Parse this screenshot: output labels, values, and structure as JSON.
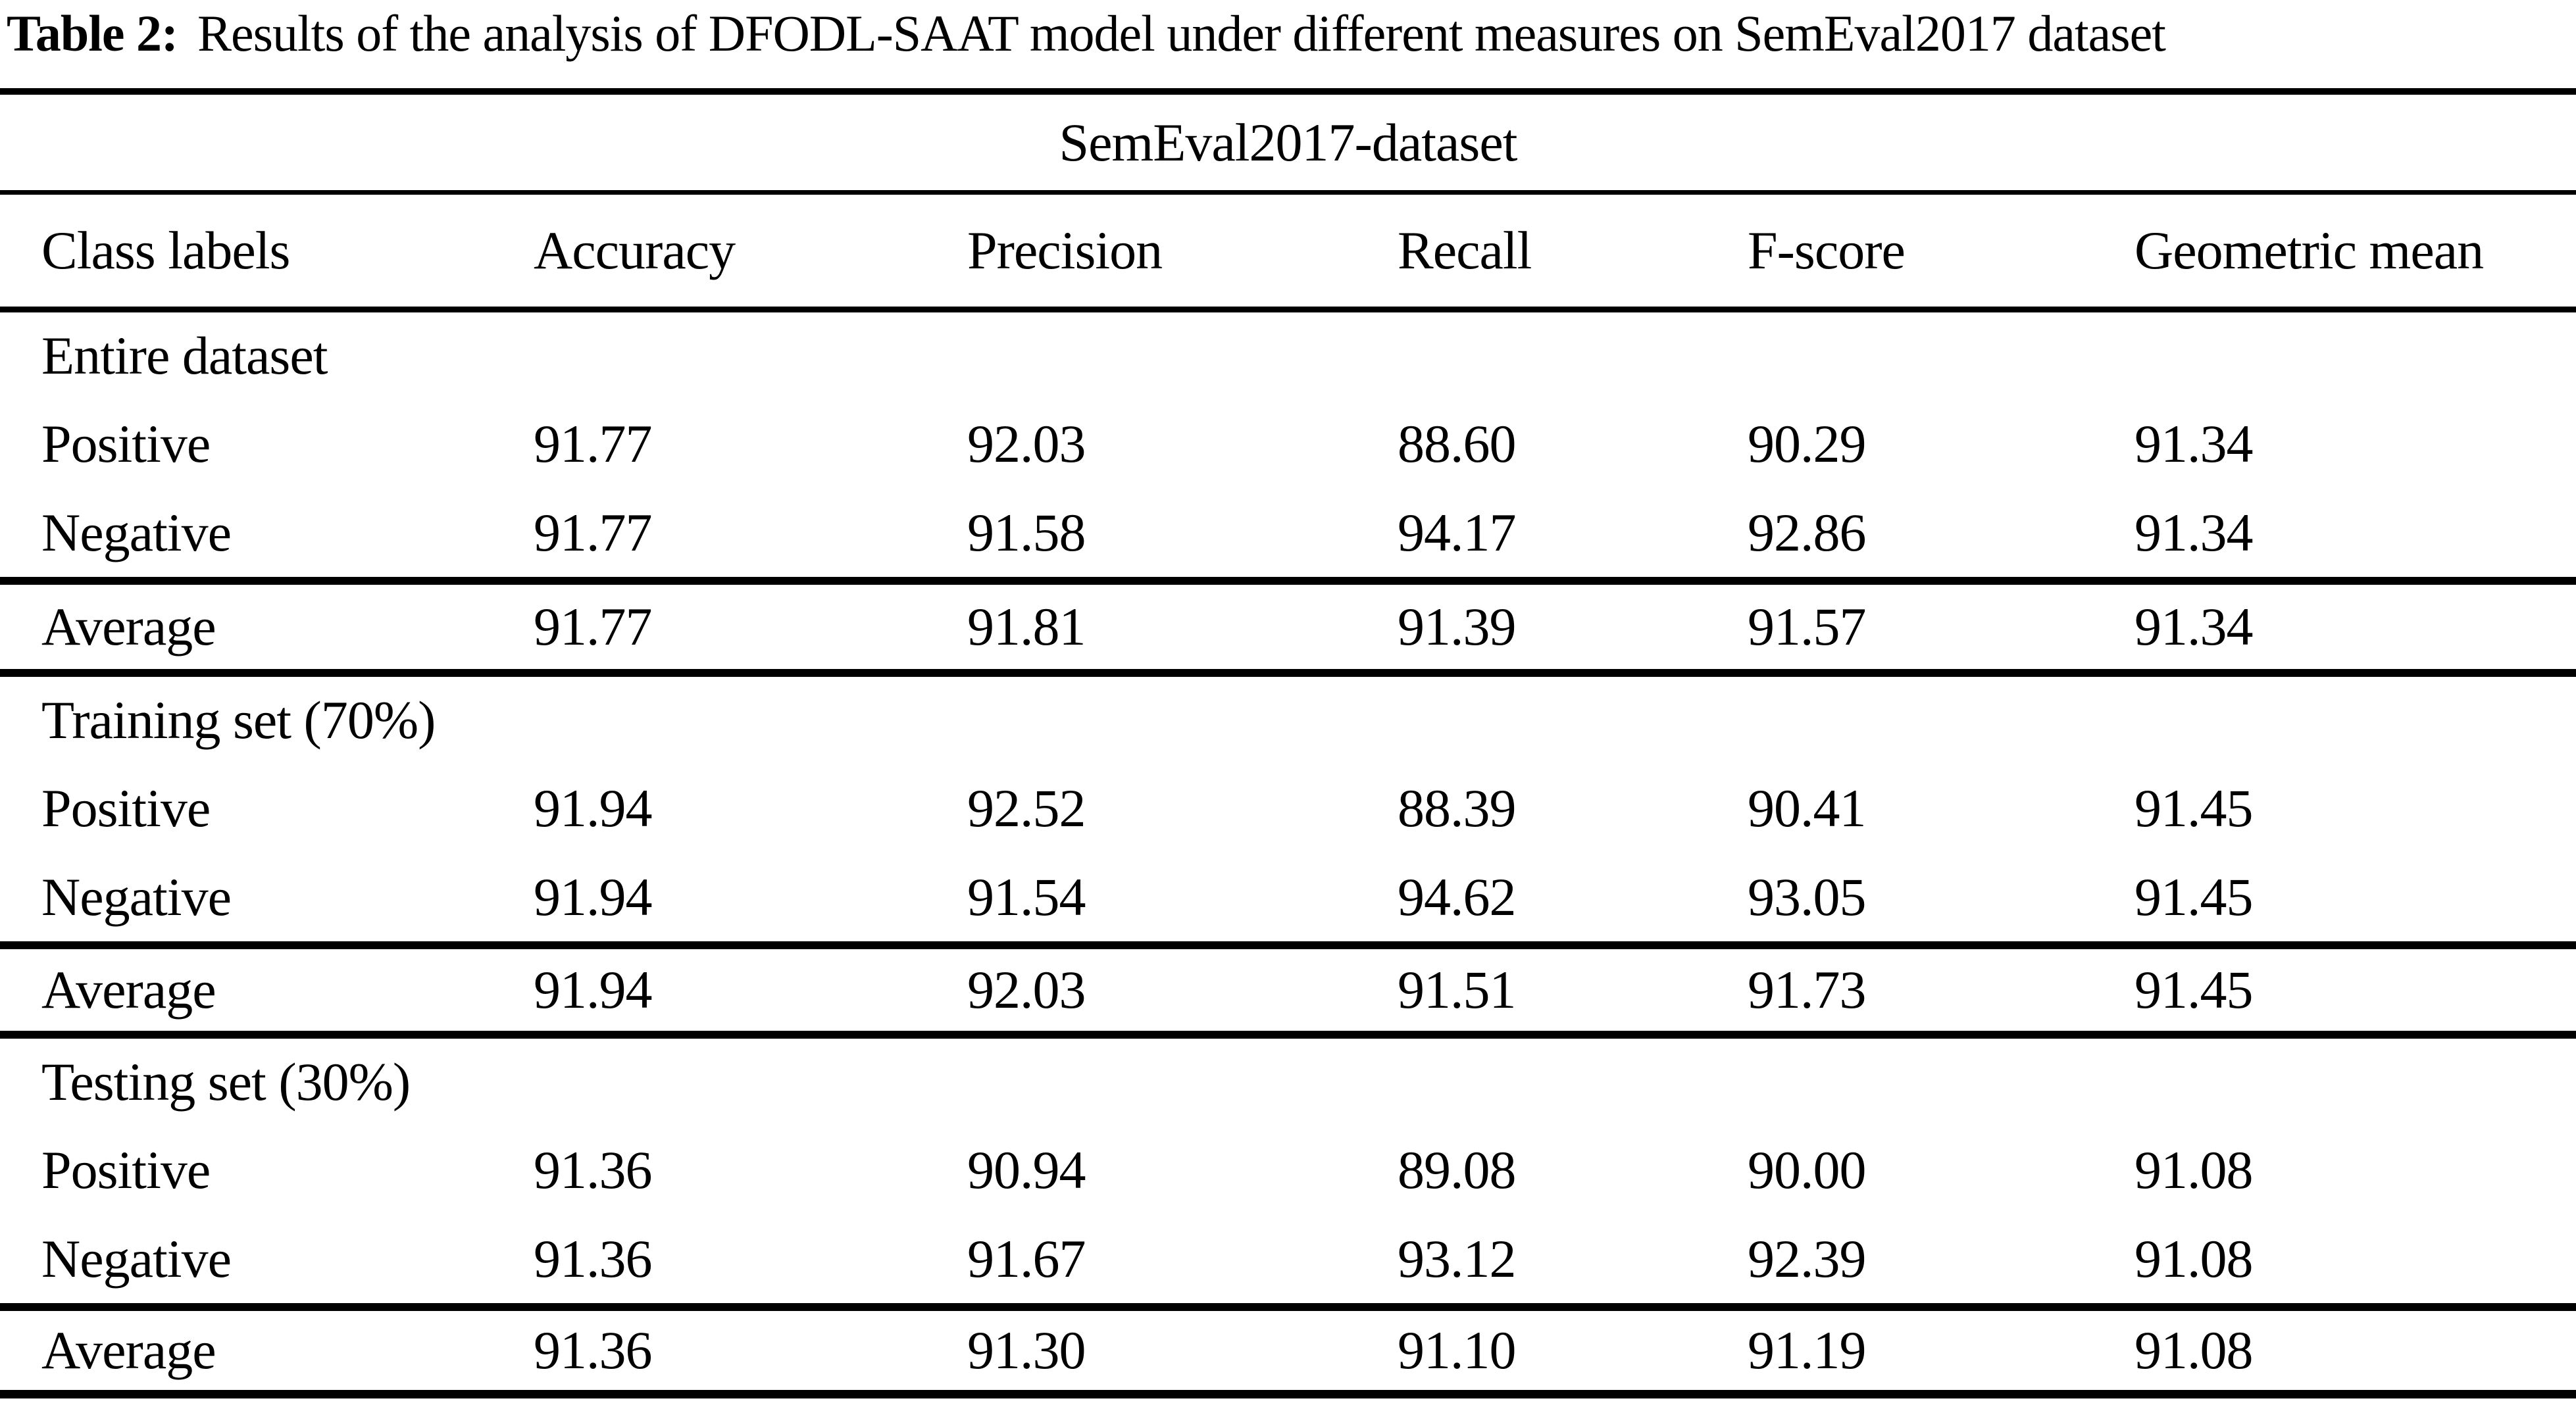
{
  "title": {
    "label": "Table 2:",
    "text": "Results of the analysis of DFODL-SAAT model under different measures on SemEval2017 dataset"
  },
  "table": {
    "span_header": "SemEval2017-dataset",
    "columns": [
      "Class labels",
      "Accuracy",
      "Precision",
      "Recall",
      "F-score",
      "Geometric mean"
    ],
    "sections": [
      {
        "heading": "Entire dataset",
        "rows": [
          {
            "label": "Positive",
            "values": [
              "91.77",
              "92.03",
              "88.60",
              "90.29",
              "91.34"
            ]
          },
          {
            "label": "Negative",
            "values": [
              "91.77",
              "91.58",
              "94.17",
              "92.86",
              "91.34"
            ]
          }
        ],
        "average": {
          "label": "Average",
          "values": [
            "91.77",
            "91.81",
            "91.39",
            "91.57",
            "91.34"
          ]
        }
      },
      {
        "heading": "Training set (70%)",
        "rows": [
          {
            "label": "Positive",
            "values": [
              "91.94",
              "92.52",
              "88.39",
              "90.41",
              "91.45"
            ]
          },
          {
            "label": "Negative",
            "values": [
              "91.94",
              "91.54",
              "94.62",
              "93.05",
              "91.45"
            ]
          }
        ],
        "average": {
          "label": "Average",
          "values": [
            "91.94",
            "92.03",
            "91.51",
            "91.73",
            "91.45"
          ]
        }
      },
      {
        "heading": "Testing set (30%)",
        "rows": [
          {
            "label": "Positive",
            "values": [
              "91.36",
              "90.94",
              "89.08",
              "90.00",
              "91.08"
            ]
          },
          {
            "label": "Negative",
            "values": [
              "91.36",
              "91.67",
              "93.12",
              "92.39",
              "91.08"
            ]
          }
        ],
        "average": {
          "label": "Average",
          "values": [
            "91.36",
            "91.30",
            "91.10",
            "91.19",
            "91.08"
          ]
        }
      }
    ]
  },
  "colors": {
    "text": "#000000",
    "background": "#ffffff",
    "rule": "#000000"
  }
}
